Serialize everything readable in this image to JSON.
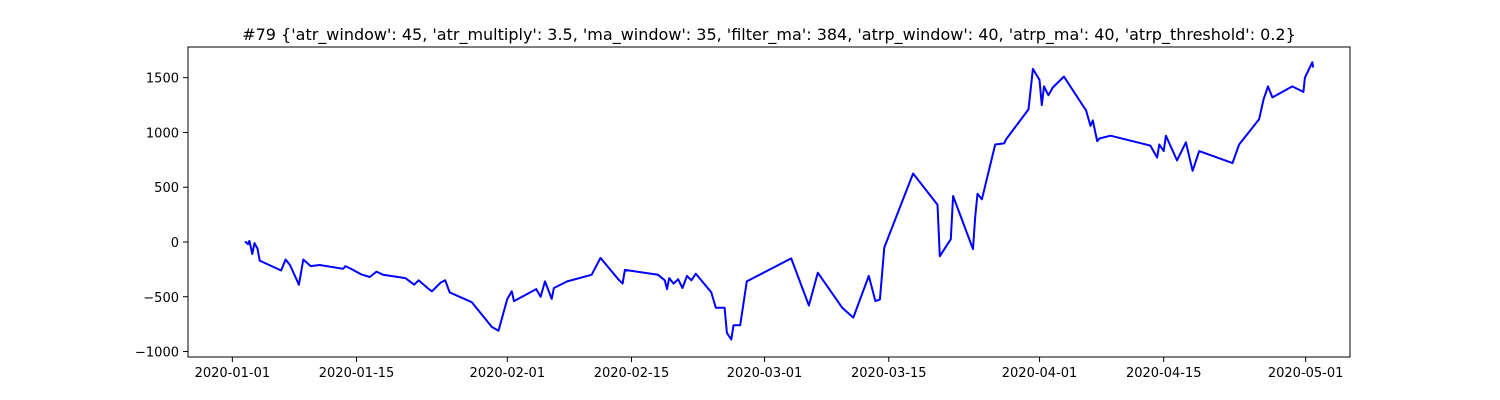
{
  "chart_data": {
    "type": "line",
    "title": "#79 {'atr_window': 45, 'atr_multiply': 3.5, 'ma_window': 35, 'filter_ma': 384, 'atrp_window': 40, 'atrp_ma': 40, 'atrp_threshold': 0.2}",
    "xlabel": "",
    "ylabel": "",
    "x_ticks": [
      "2020-01-01",
      "2020-01-15",
      "2020-02-01",
      "2020-02-15",
      "2020-03-01",
      "2020-03-15",
      "2020-04-01",
      "2020-04-15",
      "2020-05-01"
    ],
    "y_ticks": [
      -1000,
      -500,
      0,
      500,
      1000,
      1500
    ],
    "xlim": [
      "2019-12-27T00:00",
      "2020-05-06T00:00"
    ],
    "ylim": [
      -1050,
      1780
    ],
    "grid": false,
    "series": [
      {
        "color": "#0000ff",
        "points": [
          [
            "2020-01-02T12:00",
            0
          ],
          [
            "2020-01-02T18:00",
            -20
          ],
          [
            "2020-01-02T22:00",
            10
          ],
          [
            "2020-01-03T06:00",
            -110
          ],
          [
            "2020-01-03T12:00",
            -10
          ],
          [
            "2020-01-03T20:00",
            -60
          ],
          [
            "2020-01-04T02:00",
            -170
          ],
          [
            "2020-01-06T12:00",
            -260
          ],
          [
            "2020-01-07T00:00",
            -160
          ],
          [
            "2020-01-07T12:00",
            -210
          ],
          [
            "2020-01-08T12:00",
            -390
          ],
          [
            "2020-01-09T00:00",
            -160
          ],
          [
            "2020-01-09T20:00",
            -220
          ],
          [
            "2020-01-10T20:00",
            -210
          ],
          [
            "2020-01-13T12:00",
            -245
          ],
          [
            "2020-01-13T18:00",
            -220
          ],
          [
            "2020-01-14T12:00",
            -250
          ],
          [
            "2020-01-15T12:00",
            -295
          ],
          [
            "2020-01-16T12:00",
            -320
          ],
          [
            "2020-01-17T06:00",
            -270
          ],
          [
            "2020-01-18T00:00",
            -300
          ],
          [
            "2020-01-20T12:00",
            -330
          ],
          [
            "2020-01-21T12:00",
            -390
          ],
          [
            "2020-01-22T00:00",
            -350
          ],
          [
            "2020-01-23T00:00",
            -420
          ],
          [
            "2020-01-23T12:00",
            -450
          ],
          [
            "2020-01-24T12:00",
            -370
          ],
          [
            "2020-01-25T00:00",
            -350
          ],
          [
            "2020-01-25T12:00",
            -460
          ],
          [
            "2020-01-28T00:00",
            -550
          ],
          [
            "2020-01-30T06:00",
            -775
          ],
          [
            "2020-01-31T00:00",
            -810
          ],
          [
            "2020-02-01T00:00",
            -520
          ],
          [
            "2020-02-01T12:00",
            -450
          ],
          [
            "2020-02-01T18:00",
            -540
          ],
          [
            "2020-02-04T06:00",
            -430
          ],
          [
            "2020-02-04T18:00",
            -500
          ],
          [
            "2020-02-05T06:00",
            -360
          ],
          [
            "2020-02-06T00:00",
            -520
          ],
          [
            "2020-02-06T06:00",
            -420
          ],
          [
            "2020-02-07T18:00",
            -360
          ],
          [
            "2020-02-10T12:00",
            -300
          ],
          [
            "2020-02-11T12:00",
            -145
          ],
          [
            "2020-02-13T12:00",
            -340
          ],
          [
            "2020-02-14T00:00",
            -380
          ],
          [
            "2020-02-14T06:00",
            -255
          ],
          [
            "2020-02-18T00:00",
            -300
          ],
          [
            "2020-02-18T18:00",
            -350
          ],
          [
            "2020-02-19T00:00",
            -430
          ],
          [
            "2020-02-19T06:00",
            -330
          ],
          [
            "2020-02-19T18:00",
            -380
          ],
          [
            "2020-02-20T06:00",
            -340
          ],
          [
            "2020-02-20T18:00",
            -420
          ],
          [
            "2020-02-21T06:00",
            -310
          ],
          [
            "2020-02-21T18:00",
            -350
          ],
          [
            "2020-02-22T06:00",
            -290
          ],
          [
            "2020-02-24T00:00",
            -460
          ],
          [
            "2020-02-24T12:00",
            -600
          ],
          [
            "2020-02-25T12:00",
            -600
          ],
          [
            "2020-02-25T18:00",
            -830
          ],
          [
            "2020-02-26T06:00",
            -890
          ],
          [
            "2020-02-26T12:00",
            -760
          ],
          [
            "2020-02-27T06:00",
            -760
          ],
          [
            "2020-02-28T00:00",
            -360
          ],
          [
            "2020-03-04T00:00",
            -150
          ],
          [
            "2020-03-06T00:00",
            -580
          ],
          [
            "2020-03-07T00:00",
            -280
          ],
          [
            "2020-03-09T18:00",
            -600
          ],
          [
            "2020-03-11T00:00",
            -690
          ],
          [
            "2020-03-12T18:00",
            -310
          ],
          [
            "2020-03-13T12:00",
            -540
          ],
          [
            "2020-03-14T00:00",
            -525
          ],
          [
            "2020-03-14T12:00",
            -50
          ],
          [
            "2020-03-17T18:00",
            625
          ],
          [
            "2020-03-20T12:00",
            340
          ],
          [
            "2020-03-20T18:00",
            -130
          ],
          [
            "2020-03-22T00:00",
            25
          ],
          [
            "2020-03-22T06:00",
            420
          ],
          [
            "2020-03-24T12:00",
            -65
          ],
          [
            "2020-03-24T18:00",
            230
          ],
          [
            "2020-03-25T00:00",
            440
          ],
          [
            "2020-03-25T12:00",
            390
          ],
          [
            "2020-03-27T00:00",
            890
          ],
          [
            "2020-03-28T00:00",
            900
          ],
          [
            "2020-03-28T06:00",
            940
          ],
          [
            "2020-03-30T18:00",
            1210
          ],
          [
            "2020-03-31T06:00",
            1580
          ],
          [
            "2020-04-01T00:00",
            1480
          ],
          [
            "2020-04-01T06:00",
            1250
          ],
          [
            "2020-04-01T12:00",
            1420
          ],
          [
            "2020-04-02T00:00",
            1340
          ],
          [
            "2020-04-02T12:00",
            1410
          ],
          [
            "2020-04-03T18:00",
            1510
          ],
          [
            "2020-04-06T06:00",
            1200
          ],
          [
            "2020-04-06T18:00",
            1060
          ],
          [
            "2020-04-07T00:00",
            1110
          ],
          [
            "2020-04-07T12:00",
            920
          ],
          [
            "2020-04-07T18:00",
            945
          ],
          [
            "2020-04-09T00:00",
            970
          ],
          [
            "2020-04-13T12:00",
            880
          ],
          [
            "2020-04-14T06:00",
            770
          ],
          [
            "2020-04-14T12:00",
            890
          ],
          [
            "2020-04-15T00:00",
            830
          ],
          [
            "2020-04-15T06:00",
            970
          ],
          [
            "2020-04-16T12:00",
            745
          ],
          [
            "2020-04-17T12:00",
            910
          ],
          [
            "2020-04-18T06:00",
            650
          ],
          [
            "2020-04-19T00:00",
            830
          ],
          [
            "2020-04-22T18:00",
            720
          ],
          [
            "2020-04-23T12:00",
            890
          ],
          [
            "2020-04-25T18:00",
            1120
          ],
          [
            "2020-04-26T06:00",
            1300
          ],
          [
            "2020-04-26T18:00",
            1420
          ],
          [
            "2020-04-27T06:00",
            1320
          ],
          [
            "2020-04-29T12:00",
            1420
          ],
          [
            "2020-04-30T18:00",
            1370
          ],
          [
            "2020-04-30T22:00",
            1500
          ],
          [
            "2020-05-01T18:00",
            1640
          ],
          [
            "2020-05-01T20:00",
            1600
          ]
        ]
      }
    ]
  }
}
